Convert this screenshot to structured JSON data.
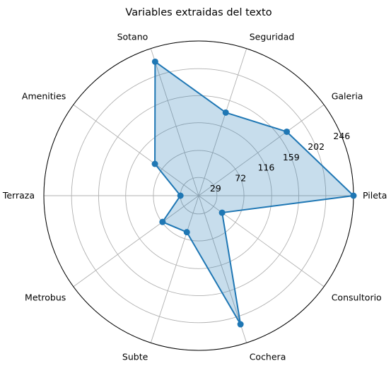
{
  "chart_data": {
    "type": "radar",
    "title": "Variables extraidas del texto",
    "categories": [
      "Pileta",
      "Galeria",
      "Seguridad",
      "Sotano",
      "Amenities",
      "Terraza",
      "Metrobus",
      "Subte",
      "Cochera",
      "Consultorio"
    ],
    "series": [
      {
        "values": [
          246,
          173,
          139,
          224,
          86,
          29,
          71,
          61,
          215,
          46
        ]
      }
    ],
    "radial_ticks": [
      29,
      72,
      116,
      159,
      202,
      246
    ],
    "rlim": [
      0,
      246
    ],
    "grid": true,
    "colors": {
      "line": "#1f77b4",
      "fill": "#1f77b4",
      "fill_opacity": 0.25,
      "grid": "#b0b0b0"
    }
  }
}
